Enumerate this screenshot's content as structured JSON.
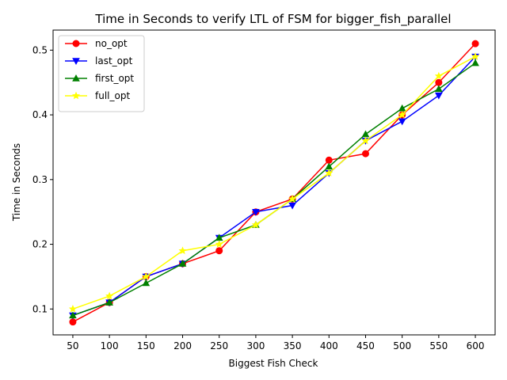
{
  "chart_data": {
    "type": "line",
    "title": "Time in Seconds to verify LTL of FSM for bigger_fish_parallel",
    "xlabel": "Biggest Fish Check",
    "ylabel": "Time in Seconds",
    "x": [
      50,
      100,
      150,
      200,
      250,
      300,
      350,
      400,
      450,
      500,
      550,
      600
    ],
    "xlim": [
      23,
      627
    ],
    "ylim": [
      0.06,
      0.531
    ],
    "yticks": [
      0.1,
      0.2,
      0.3,
      0.4,
      0.5
    ],
    "ytick_labels": [
      "0.1",
      "0.2",
      "0.3",
      "0.4",
      "0.5"
    ],
    "xtick_labels": [
      "50",
      "100",
      "150",
      "200",
      "250",
      "300",
      "350",
      "400",
      "450",
      "500",
      "550",
      "600"
    ],
    "legend_position": "top-left",
    "grid": false,
    "series": [
      {
        "name": "no_opt",
        "color": "#ff0000",
        "marker": "circle",
        "values": [
          0.08,
          0.11,
          0.15,
          0.17,
          0.19,
          0.25,
          0.27,
          0.33,
          0.34,
          0.4,
          0.45,
          0.51
        ]
      },
      {
        "name": "last_opt",
        "color": "#0000ff",
        "marker": "triangle-down",
        "values": [
          0.09,
          0.11,
          0.15,
          0.17,
          0.21,
          0.25,
          0.26,
          0.31,
          0.36,
          0.39,
          0.43,
          0.49
        ]
      },
      {
        "name": "first_opt",
        "color": "#008000",
        "marker": "triangle-up",
        "values": [
          0.09,
          0.11,
          0.14,
          0.17,
          0.21,
          0.23,
          0.27,
          0.32,
          0.37,
          0.41,
          0.44,
          0.48
        ]
      },
      {
        "name": "full_opt",
        "color": "#ffff00",
        "marker": "star",
        "values": [
          0.1,
          0.12,
          0.15,
          0.19,
          0.2,
          0.23,
          0.27,
          0.31,
          0.36,
          0.4,
          0.46,
          0.49
        ]
      }
    ]
  }
}
